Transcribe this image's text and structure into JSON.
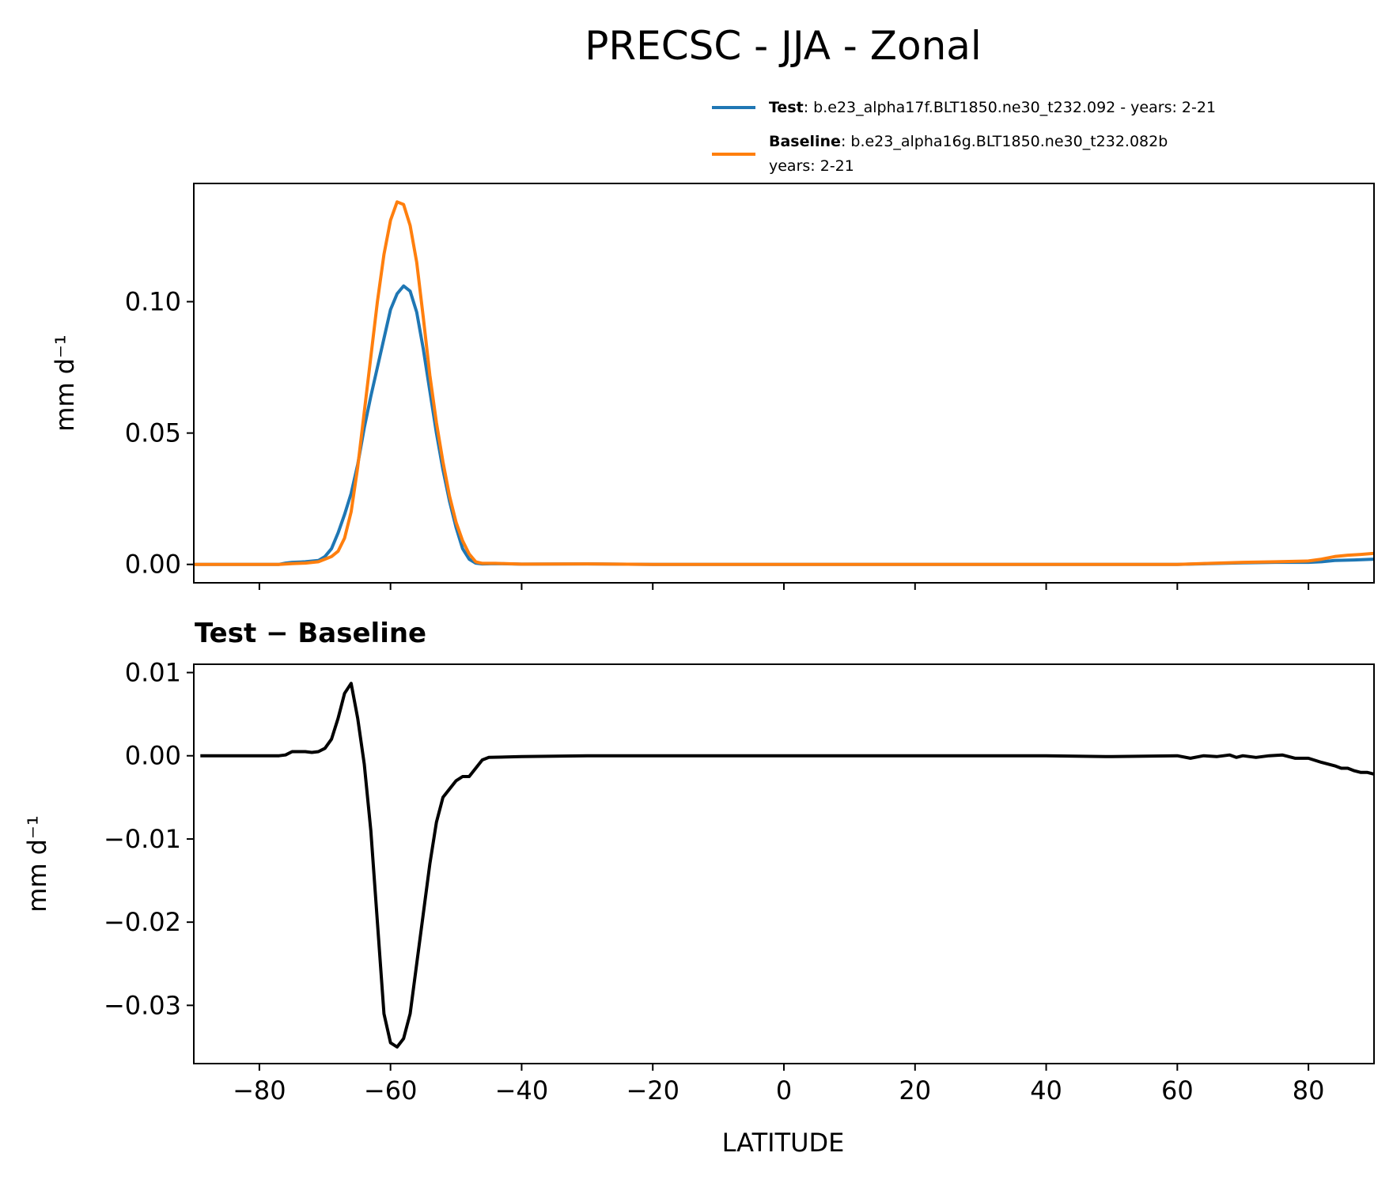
{
  "chart_data": [
    {
      "type": "line",
      "title": "PRECSC - JJA - Zonal",
      "xlabel": "",
      "ylabel": "mm d⁻¹",
      "xlim": [
        -90,
        90
      ],
      "ylim": [
        -0.007,
        0.145
      ],
      "yticks": [
        {
          "value": 0.0,
          "label": "0.00"
        },
        {
          "value": 0.05,
          "label": "0.05"
        },
        {
          "value": 0.1,
          "label": "0.10"
        }
      ],
      "xticks": [
        -80,
        -60,
        -40,
        -20,
        0,
        20,
        40,
        60,
        80
      ],
      "legend": {
        "placement": "above-right",
        "entries": [
          {
            "key": "Test",
            "text": ": b.e23_alpha17f.BLT1850.ne30_t232.092 - years: 2-21",
            "text2": "",
            "color": "#1f77b4"
          },
          {
            "key": "Baseline",
            "text": ": b.e23_alpha16g.BLT1850.ne30_t232.082b",
            "text2": "years: 2-21",
            "color": "#ff7f0e"
          }
        ]
      },
      "series": [
        {
          "name": "Test",
          "color": "#1f77b4",
          "points": [
            [
              -90,
              0
            ],
            [
              -80,
              0
            ],
            [
              -77,
              0
            ],
            [
              -76,
              0.0005
            ],
            [
              -75,
              0.0008
            ],
            [
              -73,
              0.001
            ],
            [
              -71,
              0.0015
            ],
            [
              -70,
              0.003
            ],
            [
              -69,
              0.006
            ],
            [
              -68,
              0.012
            ],
            [
              -67,
              0.019
            ],
            [
              -66,
              0.027
            ],
            [
              -65,
              0.038
            ],
            [
              -64,
              0.052
            ],
            [
              -63,
              0.064
            ],
            [
              -62,
              0.075
            ],
            [
              -61,
              0.086
            ],
            [
              -60,
              0.097
            ],
            [
              -59,
              0.103
            ],
            [
              -58,
              0.106
            ],
            [
              -57,
              0.104
            ],
            [
              -56,
              0.096
            ],
            [
              -55,
              0.082
            ],
            [
              -54,
              0.066
            ],
            [
              -53,
              0.05
            ],
            [
              -52,
              0.036
            ],
            [
              -51,
              0.024
            ],
            [
              -50,
              0.014
            ],
            [
              -49,
              0.006
            ],
            [
              -48,
              0.002
            ],
            [
              -47,
              0.0005
            ],
            [
              -46,
              0.0002
            ],
            [
              -44,
              0.0003
            ],
            [
              -40,
              0.0001
            ],
            [
              -30,
              0.0002
            ],
            [
              -20,
              0
            ],
            [
              0,
              0
            ],
            [
              20,
              0
            ],
            [
              40,
              0
            ],
            [
              60,
              0
            ],
            [
              65,
              0.0003
            ],
            [
              70,
              0.0006
            ],
            [
              75,
              0.0008
            ],
            [
              80,
              0.0008
            ],
            [
              82,
              0.001
            ],
            [
              84,
              0.0015
            ],
            [
              87,
              0.0017
            ],
            [
              90,
              0.002
            ]
          ]
        },
        {
          "name": "Baseline",
          "color": "#ff7f0e",
          "points": [
            [
              -90,
              0
            ],
            [
              -80,
              0
            ],
            [
              -77,
              0
            ],
            [
              -75,
              0.0003
            ],
            [
              -73,
              0.0005
            ],
            [
              -71,
              0.001
            ],
            [
              -70,
              0.002
            ],
            [
              -69,
              0.003
            ],
            [
              -68,
              0.005
            ],
            [
              -67,
              0.01
            ],
            [
              -66,
              0.02
            ],
            [
              -65,
              0.037
            ],
            [
              -64,
              0.058
            ],
            [
              -63,
              0.079
            ],
            [
              -62,
              0.1
            ],
            [
              -61,
              0.118
            ],
            [
              -60,
              0.131
            ],
            [
              -59,
              0.138
            ],
            [
              -58,
              0.137
            ],
            [
              -57,
              0.129
            ],
            [
              -56,
              0.115
            ],
            [
              -55,
              0.094
            ],
            [
              -54,
              0.072
            ],
            [
              -53,
              0.054
            ],
            [
              -52,
              0.039
            ],
            [
              -51,
              0.026
            ],
            [
              -50,
              0.016
            ],
            [
              -49,
              0.009
            ],
            [
              -48,
              0.004
            ],
            [
              -47,
              0.001
            ],
            [
              -46,
              0.0004
            ],
            [
              -44,
              0.0004
            ],
            [
              -40,
              0.0001
            ],
            [
              -30,
              0.0002
            ],
            [
              -20,
              0
            ],
            [
              0,
              0
            ],
            [
              20,
              0
            ],
            [
              40,
              0
            ],
            [
              60,
              0
            ],
            [
              65,
              0.0004
            ],
            [
              70,
              0.0008
            ],
            [
              75,
              0.001
            ],
            [
              80,
              0.0013
            ],
            [
              82,
              0.002
            ],
            [
              84,
              0.003
            ],
            [
              86,
              0.0035
            ],
            [
              88,
              0.0038
            ],
            [
              90,
              0.0042
            ]
          ]
        }
      ]
    },
    {
      "type": "line",
      "title": "Test − Baseline",
      "xlabel": "LATITUDE",
      "ylabel": "mm d⁻¹",
      "xlim": [
        -90,
        90
      ],
      "ylim": [
        -0.037,
        0.011
      ],
      "yticks": [
        {
          "value": 0.01,
          "label": "0.01"
        },
        {
          "value": 0.0,
          "label": "0.00"
        },
        {
          "value": -0.01,
          "label": "−0.01"
        },
        {
          "value": -0.02,
          "label": "−0.02"
        },
        {
          "value": -0.03,
          "label": "−0.03"
        }
      ],
      "xticks": [
        {
          "value": -80,
          "label": "−80"
        },
        {
          "value": -60,
          "label": "−60"
        },
        {
          "value": -40,
          "label": "−40"
        },
        {
          "value": -20,
          "label": "−20"
        },
        {
          "value": 0,
          "label": "0"
        },
        {
          "value": 20,
          "label": "20"
        },
        {
          "value": 40,
          "label": "40"
        },
        {
          "value": 60,
          "label": "60"
        },
        {
          "value": 80,
          "label": "80"
        }
      ],
      "series": [
        {
          "name": "Test − Baseline",
          "color": "#000000",
          "points": [
            [
              -89,
              0
            ],
            [
              -80,
              0
            ],
            [
              -77,
              0
            ],
            [
              -76,
              0.0001
            ],
            [
              -75,
              0.0005
            ],
            [
              -73,
              0.0005
            ],
            [
              -72,
              0.0004
            ],
            [
              -71,
              0.0005
            ],
            [
              -70,
              0.0009
            ],
            [
              -69,
              0.002
            ],
            [
              -68,
              0.0045
            ],
            [
              -67,
              0.0075
            ],
            [
              -66,
              0.0087
            ],
            [
              -65,
              0.0045
            ],
            [
              -64,
              -0.001
            ],
            [
              -63,
              -0.009
            ],
            [
              -62,
              -0.02
            ],
            [
              -61,
              -0.031
            ],
            [
              -60,
              -0.0345
            ],
            [
              -59,
              -0.035
            ],
            [
              -58,
              -0.034
            ],
            [
              -57,
              -0.031
            ],
            [
              -56,
              -0.025
            ],
            [
              -55,
              -0.019
            ],
            [
              -54,
              -0.013
            ],
            [
              -53,
              -0.008
            ],
            [
              -52,
              -0.005
            ],
            [
              -51,
              -0.004
            ],
            [
              -50,
              -0.003
            ],
            [
              -49,
              -0.0025
            ],
            [
              -48,
              -0.0025
            ],
            [
              -47,
              -0.0015
            ],
            [
              -46,
              -0.0005
            ],
            [
              -45,
              -0.0002
            ],
            [
              -40,
              -0.0001
            ],
            [
              -30,
              0
            ],
            [
              -20,
              0
            ],
            [
              0,
              0
            ],
            [
              20,
              0
            ],
            [
              40,
              0
            ],
            [
              50,
              -0.0001
            ],
            [
              60,
              0
            ],
            [
              62,
              -0.0003
            ],
            [
              64,
              0
            ],
            [
              66,
              -0.0001
            ],
            [
              68,
              0.0001
            ],
            [
              69,
              -0.0002
            ],
            [
              70,
              0
            ],
            [
              72,
              -0.0002
            ],
            [
              74,
              0
            ],
            [
              76,
              0.0001
            ],
            [
              78,
              -0.0003
            ],
            [
              80,
              -0.0003
            ],
            [
              82,
              -0.0008
            ],
            [
              84,
              -0.0012
            ],
            [
              85,
              -0.0015
            ],
            [
              86,
              -0.0015
            ],
            [
              87,
              -0.0018
            ],
            [
              88,
              -0.002
            ],
            [
              89,
              -0.002
            ],
            [
              90,
              -0.0022
            ]
          ]
        }
      ]
    }
  ]
}
